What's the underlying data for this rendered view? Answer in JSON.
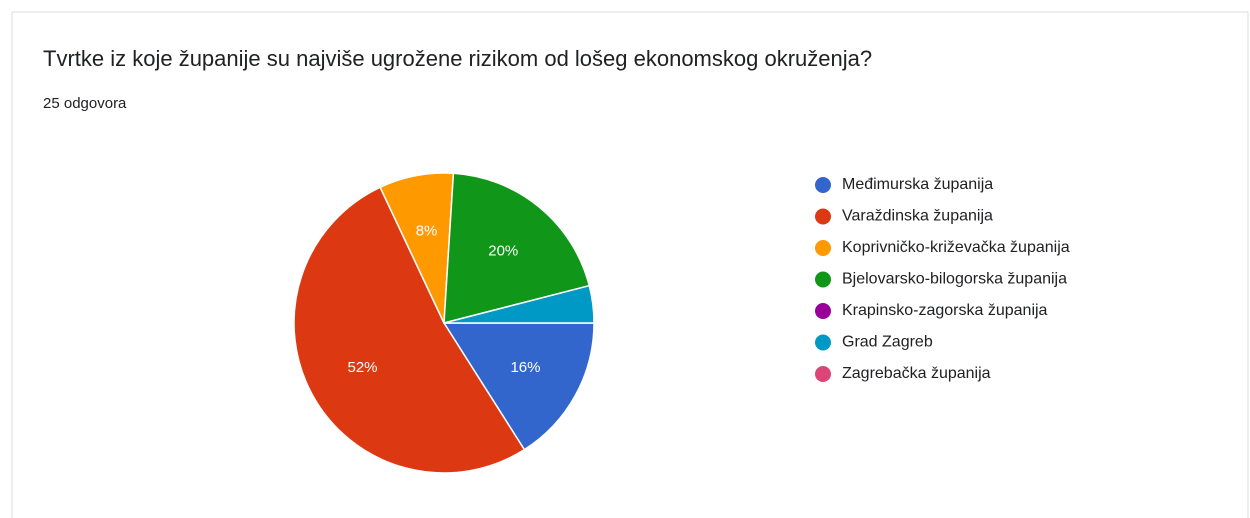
{
  "chart_data": {
    "type": "pie",
    "title": "Tvrtke iz koje županije su najviše ugrožene rizikom od lošeg ekonomskog okruženja?",
    "subtitle": "25 odgovora",
    "categories": [
      "Međimurska županija",
      "Varaždinska županija",
      "Koprivničko-križevačka županija",
      "Bjelovarsko-bilogorska županija",
      "Krapinsko-zagorska županija",
      "Grad Zagreb",
      "Zagrebačka županija"
    ],
    "values": [
      16,
      52,
      8,
      20,
      0,
      4,
      0
    ],
    "value_labels": [
      "16%",
      "52%",
      "8%",
      "20%",
      null,
      null,
      null
    ],
    "colors": [
      "#3366cc",
      "#dc3912",
      "#ff9900",
      "#109618",
      "#990099",
      "#0099c6",
      "#dd4477"
    ],
    "legend": "right"
  }
}
